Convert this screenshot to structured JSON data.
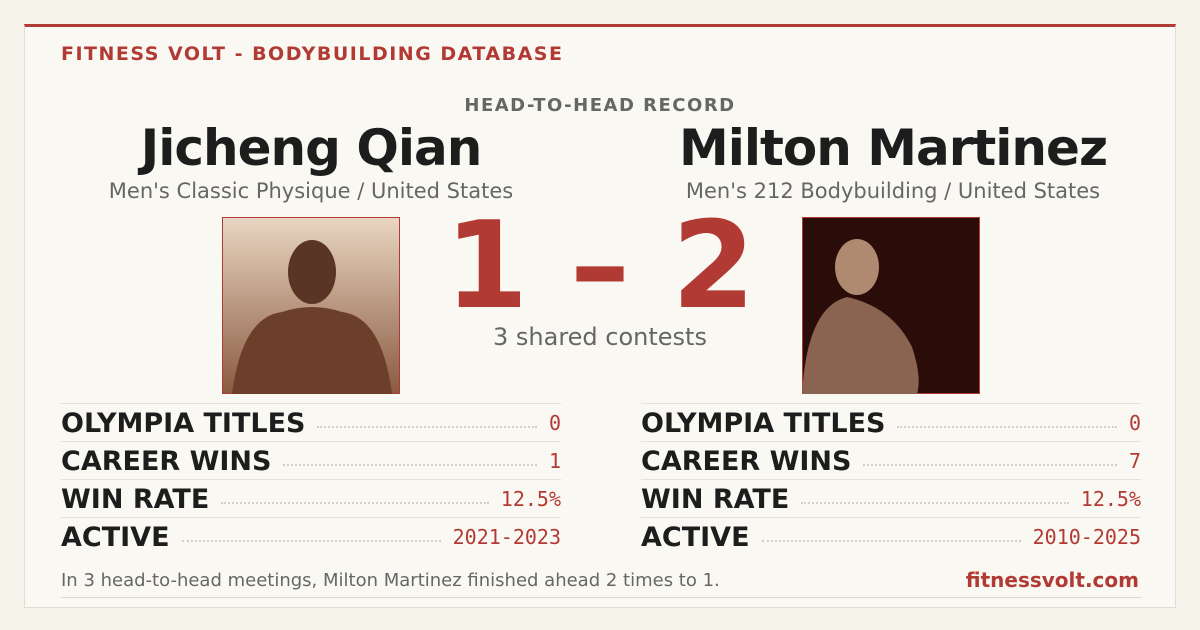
{
  "header": {
    "brand": "FITNESS VOLT - BODYBUILDING DATABASE",
    "section": "HEAD-TO-HEAD RECORD"
  },
  "players": [
    {
      "name": "Jicheng Qian",
      "division": "Men's Classic Physique / United States",
      "stats": [
        {
          "label": "OLYMPIA TITLES",
          "value": "0"
        },
        {
          "label": "CAREER WINS",
          "value": "1"
        },
        {
          "label": "WIN RATE",
          "value": "12.5%"
        },
        {
          "label": "ACTIVE",
          "value": "2021-2023"
        }
      ]
    },
    {
      "name": "Milton Martinez",
      "division": "Men's 212 Bodybuilding / United States",
      "stats": [
        {
          "label": "OLYMPIA TITLES",
          "value": "0"
        },
        {
          "label": "CAREER WINS",
          "value": "7"
        },
        {
          "label": "WIN RATE",
          "value": "12.5%"
        },
        {
          "label": "ACTIVE",
          "value": "2010-2025"
        }
      ]
    }
  ],
  "score": {
    "left": "1",
    "separator": "–",
    "right": "2",
    "shared": "3 shared contests"
  },
  "footer": {
    "summary": "In 3 head-to-head meetings, Milton Martinez finished ahead 2 times to 1.",
    "site": "fitnessvolt.com"
  }
}
